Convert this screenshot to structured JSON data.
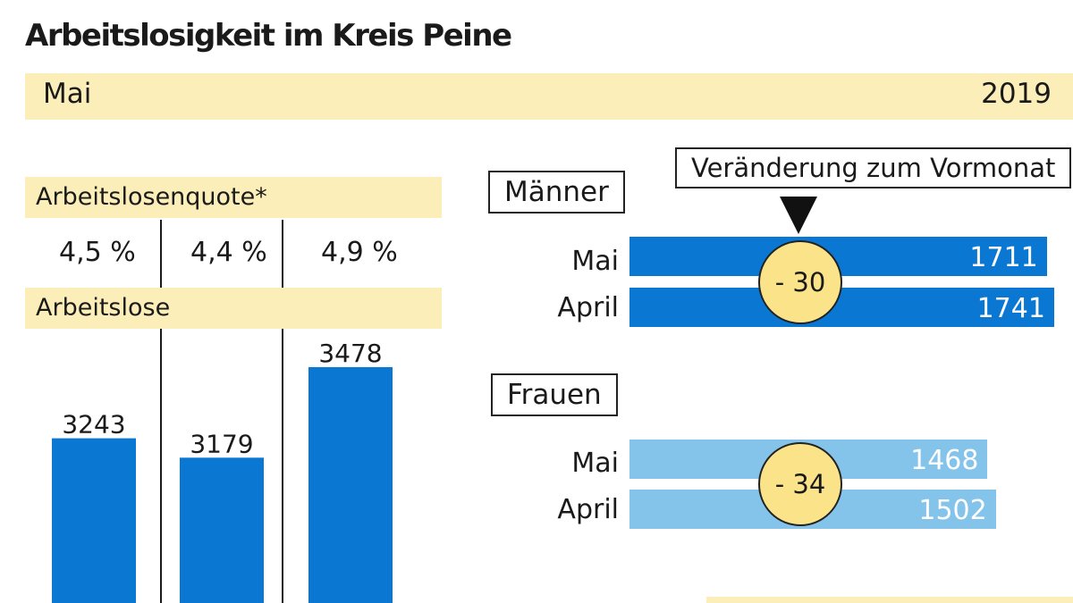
{
  "title": "Arbeitslosigkeit im Kreis Peine",
  "header": {
    "month": "Mai",
    "year": "2019"
  },
  "rate_label": "Arbeitslosenquote*",
  "unemployed_label": "Arbeitslose",
  "rates": [
    "4,5 %",
    "4,4  %",
    "4,9 %"
  ],
  "men": {
    "label": "Männer",
    "change_label": "Veränderung zum Vormonat",
    "change": "- 30"
  },
  "women": {
    "label": "Frauen",
    "change": "- 34"
  },
  "colors": {
    "dark_blue": "#0a78d2",
    "light_blue": "#84c3ea",
    "cream": "#fbeeb8",
    "circle": "#fbe38a"
  },
  "chart_data": [
    {
      "type": "bar",
      "ylabel": "Arbeitslose",
      "values": [
        3243,
        3179,
        3478
      ],
      "labels": [
        "3243",
        "3179",
        "3478"
      ]
    },
    {
      "type": "bar",
      "orientation": "horizontal",
      "title": "Männer",
      "categories": [
        "Mai",
        "April"
      ],
      "values": [
        1711,
        1741
      ],
      "labels": [
        "1711",
        "1741"
      ]
    },
    {
      "type": "bar",
      "orientation": "horizontal",
      "title": "Frauen",
      "categories": [
        "Mai",
        "April"
      ],
      "values": [
        1468,
        1502
      ],
      "labels": [
        "1468",
        "1502"
      ]
    }
  ]
}
